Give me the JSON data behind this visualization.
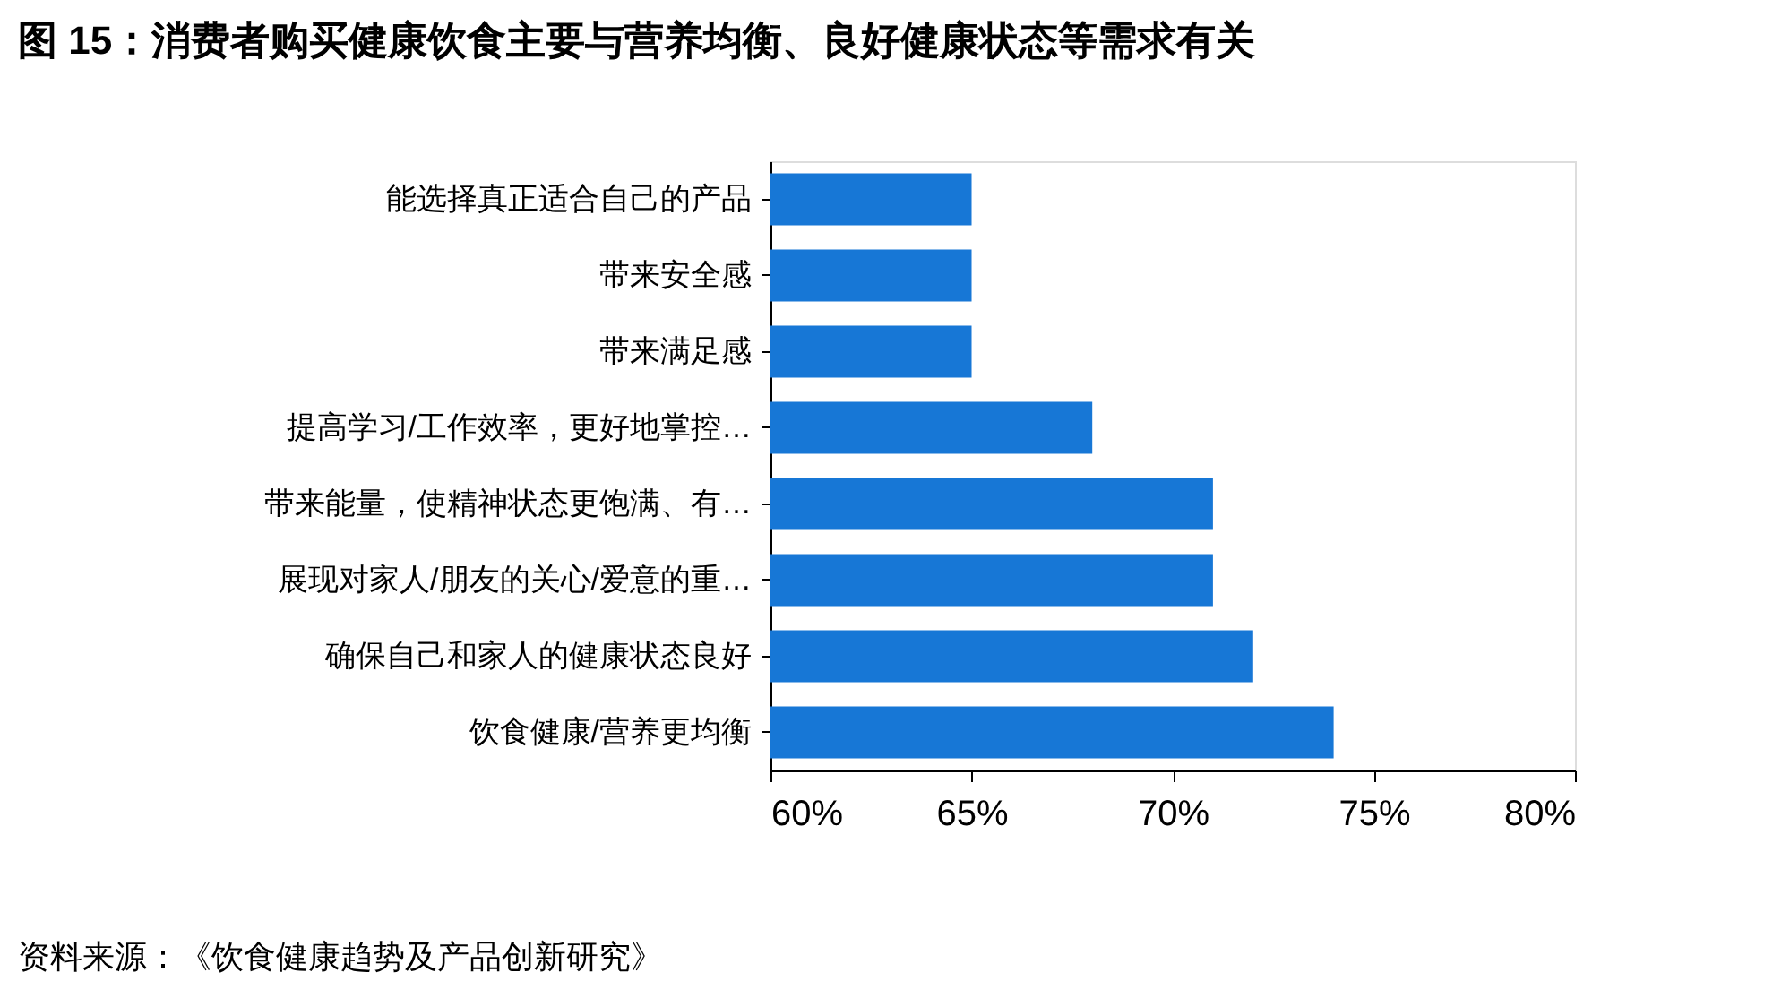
{
  "chart_data": {
    "type": "bar",
    "orientation": "horizontal",
    "title": "图 15：消费者购买健康饮食主要与营养均衡、良好健康状态等需求有关",
    "categories": [
      "能选择真正适合自己的产品",
      "带来安全感",
      "带来满足感",
      "提高学习/工作效率，更好地掌控…",
      "带来能量，使精神状态更饱满、有…",
      "展现对家人/朋友的关心/爱意的重…",
      "确保自己和家人的健康状态良好",
      "饮食健康/营养更均衡"
    ],
    "values": [
      65,
      65,
      65,
      68,
      71,
      71,
      72,
      74
    ],
    "color": "#1777d6",
    "xlim": [
      60,
      80
    ],
    "xticks": [
      {
        "value": 60,
        "label": "60%"
      },
      {
        "value": 65,
        "label": "65%"
      },
      {
        "value": 70,
        "label": "70%"
      },
      {
        "value": 75,
        "label": "75%"
      },
      {
        "value": 80,
        "label": "80%"
      }
    ],
    "grid": false,
    "annotations": [
      "资料来源：《饮食健康趋势及产品创新研究》"
    ]
  }
}
